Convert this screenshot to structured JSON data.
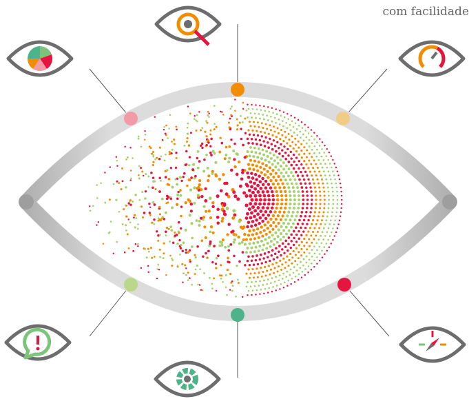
{
  "caption": "com facilidade"
}
